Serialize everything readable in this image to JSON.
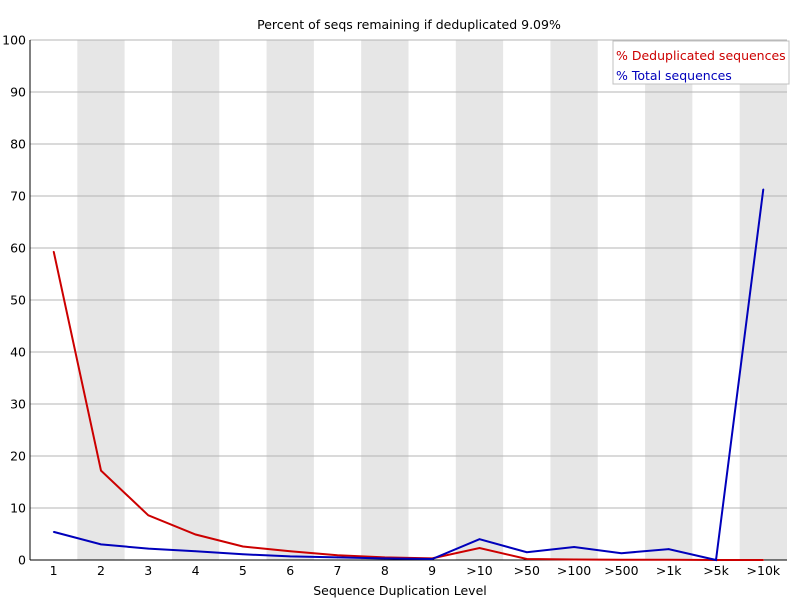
{
  "chart_data": {
    "type": "line",
    "title": "Percent of seqs remaining if deduplicated 9.09%",
    "xlabel": "Sequence Duplication Level",
    "ylabel": "",
    "categories": [
      "1",
      "2",
      "3",
      "4",
      "5",
      "6",
      "7",
      "8",
      "9",
      ">10",
      ">50",
      ">100",
      ">500",
      ">1k",
      ">5k",
      ">10k"
    ],
    "ylim": [
      0,
      100
    ],
    "yticks": [
      0,
      10,
      20,
      30,
      40,
      50,
      60,
      70,
      80,
      90,
      100
    ],
    "grid": true,
    "alternating_column_shading": true,
    "legend_position": "top-right",
    "series": [
      {
        "name": "% Deduplicated sequences",
        "color": "#cc0000",
        "values": [
          59.3,
          17.2,
          8.6,
          4.9,
          2.6,
          1.7,
          0.9,
          0.5,
          0.3,
          2.3,
          0.2,
          0.1,
          0.05,
          0.05,
          0.0,
          0.0
        ]
      },
      {
        "name": "% Total sequences",
        "color": "#0000bb",
        "values": [
          5.4,
          3.0,
          2.2,
          1.7,
          1.1,
          0.7,
          0.5,
          0.3,
          0.2,
          4.0,
          1.5,
          2.5,
          1.3,
          2.1,
          0.0,
          71.3
        ]
      }
    ]
  }
}
